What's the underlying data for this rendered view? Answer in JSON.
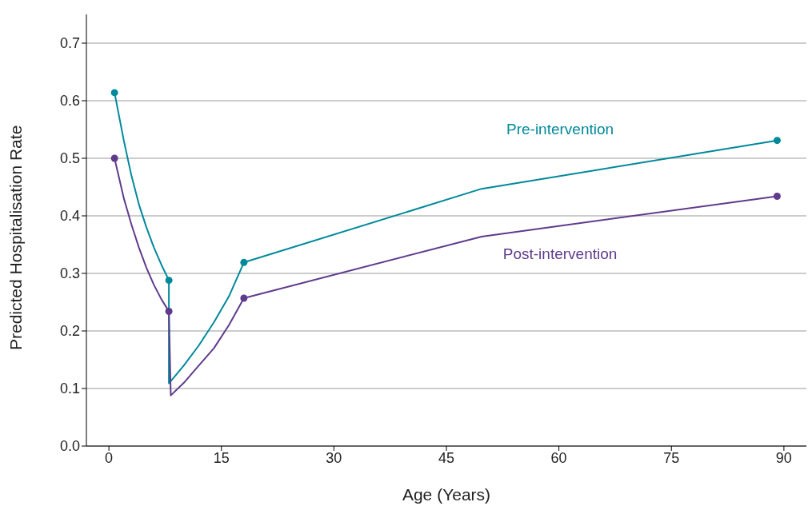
{
  "chart_data": {
    "type": "line",
    "xlabel": "Age (Years)",
    "ylabel": "Predicted Hospitalisation Rate",
    "xlim": [
      -3,
      93
    ],
    "xticks": [
      0,
      15,
      30,
      45,
      60,
      75,
      90
    ],
    "ylim": [
      0,
      0.75
    ],
    "yticks": [
      {
        "value": 0,
        "label": "0.0"
      },
      0.1,
      0.2,
      0.3,
      0.4,
      0.5,
      0.6,
      0.7
    ],
    "grid": "y",
    "marker": "none",
    "line_style": "solid",
    "series": [
      {
        "name": "Pre-intervention",
        "color": "#00899a",
        "x": [
          0.75,
          2,
          3,
          4,
          5,
          6,
          7,
          8,
          8,
          10,
          12,
          14,
          16,
          18,
          49.7,
          89.1
        ],
        "values": [
          0.614,
          0.53,
          0.47,
          0.42,
          0.38,
          0.345,
          0.315,
          0.288,
          0.109,
          0.14,
          0.175,
          0.215,
          0.26,
          0.319,
          0.447,
          0.531
        ]
      },
      {
        "name": "Post-intervention",
        "color": "#5f3b8c",
        "x": [
          0.75,
          2,
          3,
          4,
          5,
          6,
          7,
          8,
          8.25,
          10,
          12,
          14,
          16,
          18,
          49.7,
          89.1
        ],
        "values": [
          0.5,
          0.43,
          0.385,
          0.345,
          0.31,
          0.28,
          0.255,
          0.234,
          0.088,
          0.11,
          0.14,
          0.17,
          0.21,
          0.257,
          0.364,
          0.434
        ]
      },
      {
        "type": "scatter",
        "color": "#00899a",
        "marker": "circle",
        "x": [
          0.75,
          8,
          18,
          89.1
        ],
        "values": [
          0.614,
          0.288,
          0.319,
          0.531
        ]
      },
      {
        "type": "scatter",
        "color": "#5f3b8c",
        "marker": "circle",
        "x": [
          0.75,
          8,
          18,
          89.1
        ],
        "values": [
          0.5,
          0.234,
          0.257,
          0.434
        ]
      }
    ]
  }
}
